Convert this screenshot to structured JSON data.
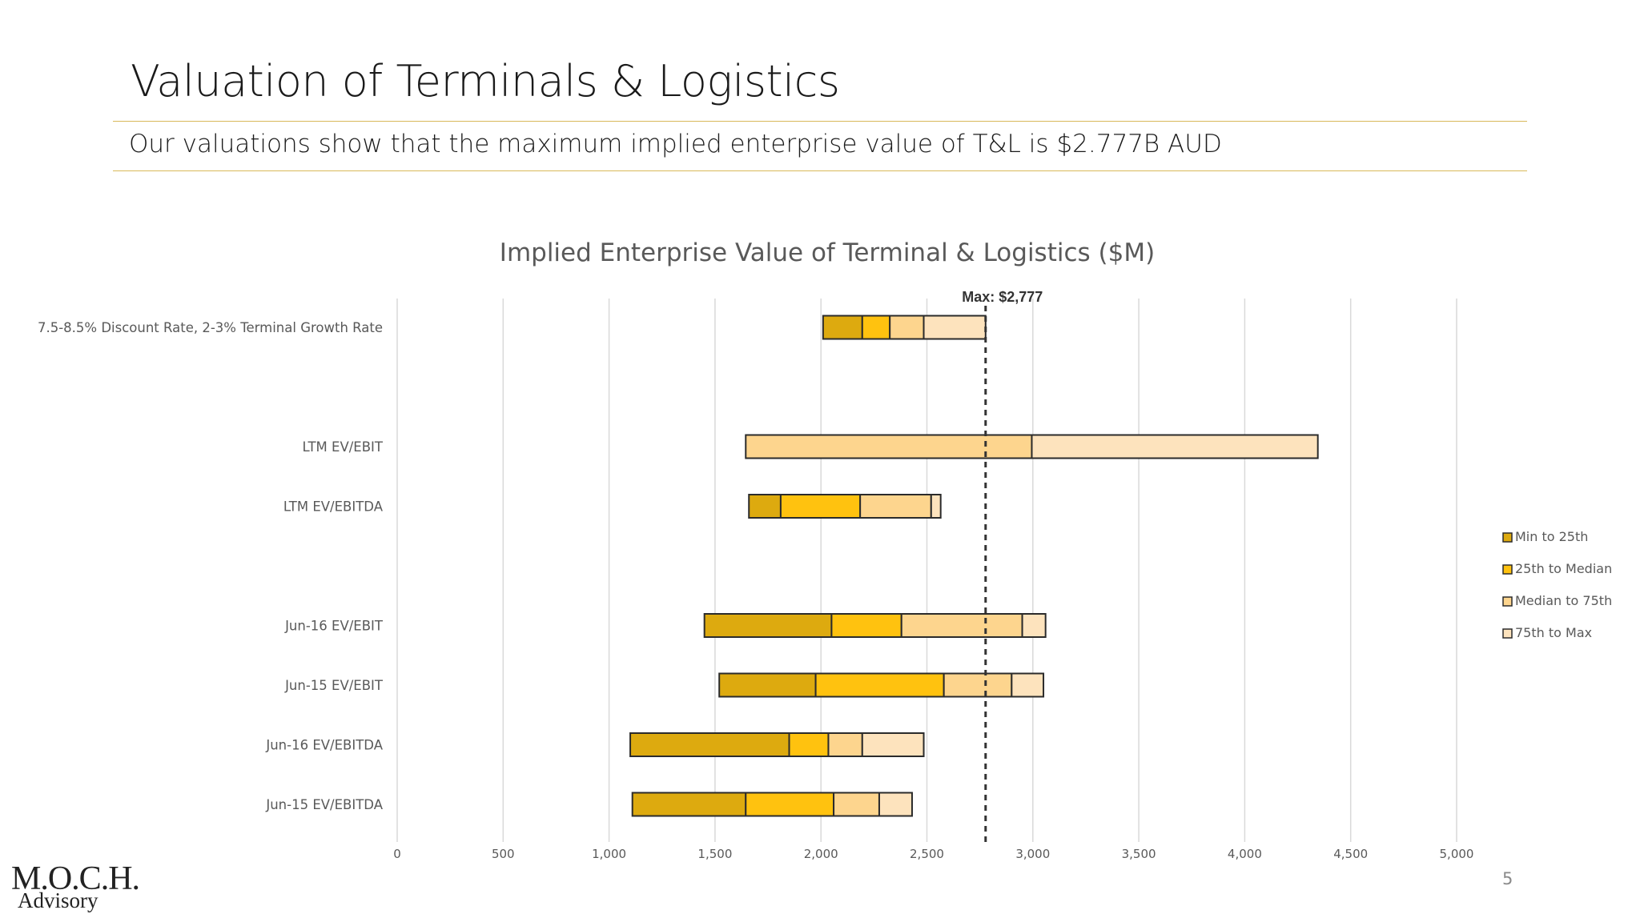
{
  "slide": {
    "title": "Valuation of Terminals & Logistics",
    "subtitle": "Our valuations show that the maximum implied enterprise value of T&L is $2.777B AUD",
    "page_number": "5",
    "logo_line1": "M.O.C.H.",
    "logo_line2": "Advisory"
  },
  "colors": {
    "accent_rule": "#d8b95a",
    "min_to_25th": "#DDAA0F",
    "p25_to_median": "#FFC20F",
    "median_to_75th": "#FDD58E",
    "p75_to_max": "#FDE3BD",
    "bar_outline": "#2b2b2b"
  },
  "chart_data": {
    "type": "bar",
    "orientation": "horizontal-stacked-range",
    "title": "Implied Enterprise Value of Terminal & Logistics ($M)",
    "xlabel": "",
    "ylabel": "",
    "xlim": [
      0,
      5000
    ],
    "xticks": [
      0,
      500,
      1000,
      1500,
      2000,
      2500,
      3000,
      3500,
      4000,
      4500,
      5000
    ],
    "xtick_labels": [
      "0",
      "500",
      "1,000",
      "1,500",
      "2,000",
      "2,500",
      "3,000",
      "3,500",
      "4,000",
      "4,500",
      "5,000"
    ],
    "grid": true,
    "legend_position": "right",
    "series": [
      {
        "name": "Min to 25th",
        "color_key": "min_to_25th"
      },
      {
        "name": "25th to Median",
        "color_key": "p25_to_median"
      },
      {
        "name": "Median to 75th",
        "color_key": "median_to_75th"
      },
      {
        "name": "75th to Max",
        "color_key": "p75_to_max"
      }
    ],
    "categories": [
      {
        "label": "7.5-8.5% Discount Rate, 2-3% Terminal Growth Rate",
        "row": 0,
        "min": 2010,
        "p25": 2195,
        "median": 2325,
        "p75": 2485,
        "max": 2777
      },
      {
        "label": "LTM EV/EBIT",
        "row": 2,
        "min": 1645,
        "p25": 1645,
        "median": 1645,
        "p75": 2995,
        "max": 4345
      },
      {
        "label": "LTM EV/EBITDA",
        "row": 3,
        "min": 1660,
        "p25": 1810,
        "median": 2185,
        "p75": 2520,
        "max": 2565
      },
      {
        "label": "Jun-16 EV/EBIT",
        "row": 5,
        "min": 1450,
        "p25": 2050,
        "median": 2380,
        "p75": 2950,
        "max": 3060
      },
      {
        "label": "Jun-15 EV/EBIT",
        "row": 6,
        "min": 1520,
        "p25": 1975,
        "median": 2580,
        "p75": 2900,
        "max": 3050
      },
      {
        "label": "Jun-16 EV/EBITDA",
        "row": 7,
        "min": 1100,
        "p25": 1850,
        "median": 2035,
        "p75": 2195,
        "max": 2485
      },
      {
        "label": "Jun-15 EV/EBITDA",
        "row": 8,
        "min": 1110,
        "p25": 1645,
        "median": 2060,
        "p75": 2275,
        "max": 2430
      }
    ],
    "reference_line": {
      "value": 2777,
      "label": "Max: $2,777",
      "style": "dashed"
    }
  }
}
